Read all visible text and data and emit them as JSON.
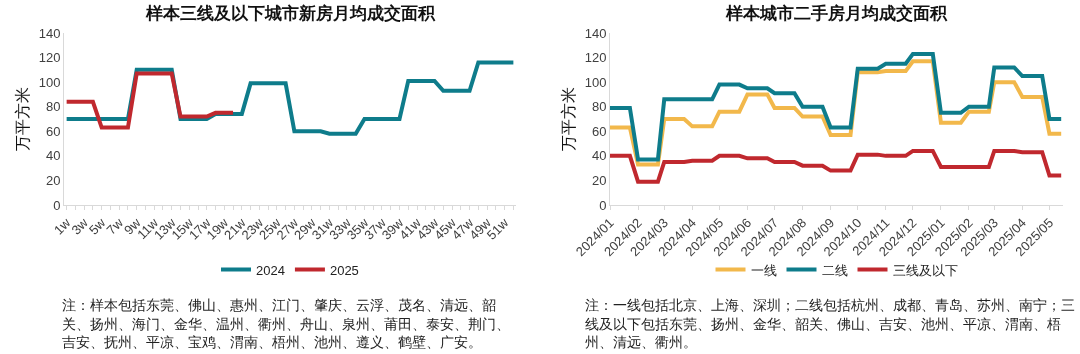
{
  "chart_data": [
    {
      "type": "line",
      "title": "样本三线及以下城市新房月均成交面积",
      "ylabel": "万平方米",
      "categories": [
        "1w",
        null,
        "3w",
        null,
        "5w",
        null,
        "7w",
        null,
        "9w",
        null,
        "11w",
        null,
        "13w",
        null,
        "15w",
        null,
        "17w",
        null,
        "19w",
        null,
        "21w",
        null,
        "23w",
        null,
        "25w",
        null,
        "27w",
        null,
        "29w",
        null,
        "31w",
        null,
        "33w",
        null,
        "35w",
        null,
        "37w",
        null,
        "39w",
        null,
        "41w",
        null,
        "43w",
        null,
        "45w",
        null,
        "47w",
        null,
        "49w",
        null,
        "51w",
        null
      ],
      "series": [
        {
          "name": "2024",
          "color": "#0e7c8b",
          "values": [
            70,
            70,
            70,
            70,
            70,
            70,
            70,
            70,
            110,
            110,
            110,
            110,
            110,
            70,
            70,
            70,
            70,
            74,
            74,
            74,
            74,
            99,
            99,
            99,
            99,
            99,
            60,
            60,
            60,
            60,
            58,
            58,
            58,
            58,
            70,
            70,
            70,
            70,
            70,
            101,
            101,
            101,
            101,
            93,
            93,
            93,
            93,
            116,
            116,
            116,
            116,
            116
          ]
        },
        {
          "name": "2025",
          "color": "#c0282e",
          "values": [
            84,
            84,
            84,
            84,
            63,
            63,
            63,
            63,
            107,
            107,
            107,
            107,
            107,
            72,
            72,
            72,
            72,
            75,
            75,
            75,
            null,
            null,
            null,
            null,
            null,
            null,
            null,
            null,
            null,
            null,
            null,
            null,
            null,
            null,
            null,
            null,
            null,
            null,
            null,
            null,
            null,
            null,
            null,
            null,
            null,
            null,
            null,
            null,
            null,
            null,
            null,
            null
          ]
        }
      ],
      "ylim": [
        0,
        140
      ],
      "yticks": [
        0,
        20,
        40,
        60,
        80,
        100,
        120,
        140
      ],
      "grid": false,
      "legend": "bottom",
      "annotations": [
        "注：样本包括东莞、佛山、惠州、江门、肇庆、云浮、茂名、清远、韶关、扬州、海门、金华、温州、衢州、舟山、泉州、莆田、泰安、荆门、吉安、抚州、平凉、宝鸡、渭南、梧州、池州、遵义、鹤壁、广安。"
      ]
    },
    {
      "type": "line",
      "title": "样本城市二手房月均成交面积",
      "ylabel": "万平方米",
      "x": [
        "2024-01-01",
        "2024-01-23",
        "2024-02-01",
        "2024-02-23",
        "2024-03-01",
        "2024-03-23",
        "2024-04-01",
        "2024-04-23",
        "2024-05-01",
        "2024-05-23",
        "2024-06-01",
        "2024-06-23",
        "2024-07-01",
        "2024-07-23",
        "2024-08-01",
        "2024-08-23",
        "2024-09-01",
        "2024-09-23",
        "2024-10-01",
        "2024-10-23",
        "2024-11-01",
        "2024-11-23",
        "2024-12-01",
        "2024-12-23",
        "2025-01-01",
        "2025-01-23",
        "2025-02-01",
        "2025-02-23",
        "2025-03-01",
        "2025-03-23",
        "2025-04-01",
        "2025-04-23",
        "2025-05-01",
        "2025-05-14"
      ],
      "series": [
        {
          "name": "一线",
          "color": "#f2b84b",
          "values": [
            63,
            63,
            33,
            33,
            70,
            70,
            64,
            64,
            76,
            76,
            90,
            90,
            79,
            79,
            72,
            72,
            57,
            57,
            108,
            108,
            109,
            109,
            117,
            117,
            67,
            67,
            76,
            76,
            100,
            100,
            88,
            88,
            58,
            58
          ]
        },
        {
          "name": "二线",
          "color": "#0e7c8b",
          "values": [
            79,
            79,
            37,
            37,
            86,
            86,
            86,
            86,
            98,
            98,
            95,
            95,
            91,
            91,
            80,
            80,
            63,
            63,
            111,
            111,
            115,
            115,
            123,
            123,
            75,
            75,
            80,
            80,
            112,
            112,
            105,
            105,
            70,
            70
          ]
        },
        {
          "name": "三线及以下",
          "color": "#c0282e",
          "values": [
            40,
            40,
            19,
            19,
            35,
            35,
            36,
            36,
            40,
            40,
            38,
            38,
            35,
            35,
            32,
            32,
            28,
            28,
            41,
            41,
            40,
            40,
            44,
            44,
            31,
            31,
            31,
            31,
            44,
            44,
            43,
            43,
            24,
            24
          ]
        }
      ],
      "xlim": [
        "2024-01-01",
        "2025-05-16"
      ],
      "xticks": [
        {
          "value": "2024-01-01",
          "label": "2024/01"
        },
        {
          "value": "2024-02-01",
          "label": "2024/02"
        },
        {
          "value": "2024-03-01",
          "label": "2024/03"
        },
        {
          "value": "2024-04-01",
          "label": "2024/04"
        },
        {
          "value": "2024-05-01",
          "label": "2024/05"
        },
        {
          "value": "2024-06-01",
          "label": "2024/06"
        },
        {
          "value": "2024-07-01",
          "label": "2024/07"
        },
        {
          "value": "2024-08-01",
          "label": "2024/08"
        },
        {
          "value": "2024-09-01",
          "label": "2024/09"
        },
        {
          "value": "2024-10-01",
          "label": "2024/10"
        },
        {
          "value": "2024-11-01",
          "label": "2024/11"
        },
        {
          "value": "2024-12-01",
          "label": "2024/12"
        },
        {
          "value": "2025-01-01",
          "label": "2025/01"
        },
        {
          "value": "2025-02-01",
          "label": "2025/02"
        },
        {
          "value": "2025-03-01",
          "label": "2025/03"
        },
        {
          "value": "2025-04-01",
          "label": "2025/04"
        },
        {
          "value": "2025-05-01",
          "label": "2025/05"
        }
      ],
      "ylim": [
        0,
        140
      ],
      "yticks": [
        0,
        20,
        40,
        60,
        80,
        100,
        120,
        140
      ],
      "grid": false,
      "legend": "bottom",
      "annotations": [
        "注：一线包括北京、上海、深圳；二线包括杭州、成都、青岛、苏州、南宁；三线及以下包括东莞、扬州、金华、韶关、佛山、吉安、池州、平凉、渭南、梧州、清远、衢州。"
      ]
    }
  ]
}
